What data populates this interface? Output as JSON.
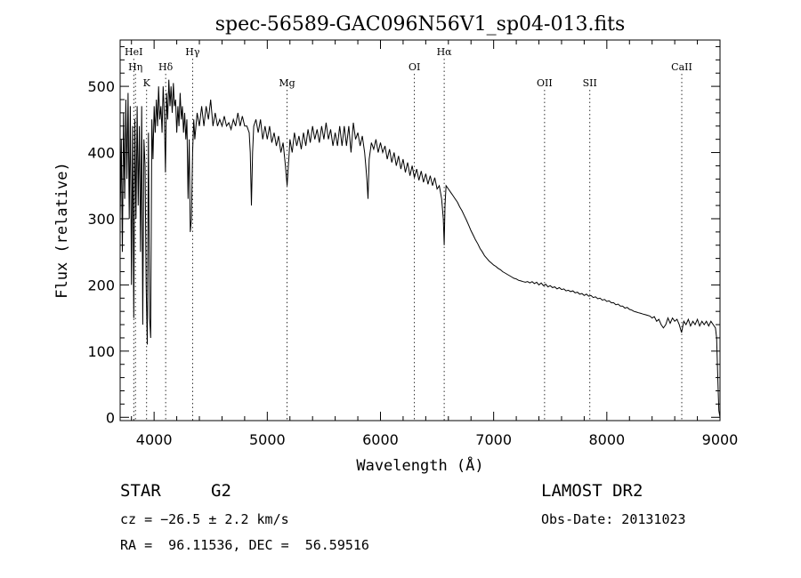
{
  "chart_data": {
    "type": "line",
    "title": "spec-56589-GAC096N56V1_sp04-013.fits",
    "xlabel": "Wavelength (Å)",
    "ylabel": "Flux (relative)",
    "xlim": [
      3700,
      9000
    ],
    "ylim": [
      -5,
      570
    ],
    "xticks": [
      4000,
      5000,
      6000,
      7000,
      8000,
      9000
    ],
    "yticks": [
      0,
      100,
      200,
      300,
      400,
      500
    ],
    "grid": false,
    "line_markers": [
      {
        "label": "HeI",
        "x": 3820,
        "row": 1
      },
      {
        "label": "Hη",
        "x": 3835,
        "row": 2
      },
      {
        "label": "K",
        "x": 3934,
        "row": 3
      },
      {
        "label": "Hδ",
        "x": 4102,
        "row": 2
      },
      {
        "label": "Hγ",
        "x": 4340,
        "row": 1
      },
      {
        "label": "Mg",
        "x": 5175,
        "row": 3
      },
      {
        "label": "OI",
        "x": 6300,
        "row": 2
      },
      {
        "label": "Hα",
        "x": 6563,
        "row": 1
      },
      {
        "label": "OII",
        "x": 7450,
        "row": 3
      },
      {
        "label": "SII",
        "x": 7850,
        "row": 3
      },
      {
        "label": "CaII",
        "x": 8662,
        "row": 2
      }
    ],
    "series": [
      {
        "values": [
          [
            3700,
            300
          ],
          [
            3710,
            420
          ],
          [
            3720,
            250
          ],
          [
            3730,
            460
          ],
          [
            3740,
            330
          ],
          [
            3750,
            480
          ],
          [
            3760,
            360
          ],
          [
            3770,
            490
          ],
          [
            3780,
            300
          ],
          [
            3790,
            470
          ],
          [
            3800,
            200
          ],
          [
            3810,
            440
          ],
          [
            3820,
            150
          ],
          [
            3830,
            450
          ],
          [
            3840,
            300
          ],
          [
            3850,
            470
          ],
          [
            3860,
            320
          ],
          [
            3870,
            440
          ],
          [
            3880,
            250
          ],
          [
            3890,
            470
          ],
          [
            3900,
            140
          ],
          [
            3910,
            420
          ],
          [
            3920,
            380
          ],
          [
            3930,
            200
          ],
          [
            3940,
            110
          ],
          [
            3950,
            430
          ],
          [
            3960,
            150
          ],
          [
            3970,
            120
          ],
          [
            3980,
            450
          ],
          [
            3990,
            390
          ],
          [
            4000,
            470
          ],
          [
            4010,
            430
          ],
          [
            4020,
            480
          ],
          [
            4030,
            440
          ],
          [
            4040,
            500
          ],
          [
            4050,
            450
          ],
          [
            4060,
            470
          ],
          [
            4070,
            430
          ],
          [
            4080,
            500
          ],
          [
            4090,
            460
          ],
          [
            4100,
            370
          ],
          [
            4110,
            490
          ],
          [
            4120,
            450
          ],
          [
            4130,
            510
          ],
          [
            4140,
            470
          ],
          [
            4150,
            500
          ],
          [
            4160,
            460
          ],
          [
            4170,
            505
          ],
          [
            4180,
            470
          ],
          [
            4190,
            480
          ],
          [
            4200,
            430
          ],
          [
            4210,
            470
          ],
          [
            4220,
            440
          ],
          [
            4230,
            490
          ],
          [
            4240,
            450
          ],
          [
            4250,
            470
          ],
          [
            4260,
            430
          ],
          [
            4270,
            460
          ],
          [
            4280,
            420
          ],
          [
            4290,
            450
          ],
          [
            4300,
            330
          ],
          [
            4310,
            420
          ],
          [
            4320,
            280
          ],
          [
            4330,
            300
          ],
          [
            4340,
            400
          ],
          [
            4350,
            450
          ],
          [
            4360,
            420
          ],
          [
            4380,
            460
          ],
          [
            4400,
            440
          ],
          [
            4420,
            470
          ],
          [
            4440,
            440
          ],
          [
            4460,
            470
          ],
          [
            4480,
            450
          ],
          [
            4500,
            480
          ],
          [
            4520,
            440
          ],
          [
            4540,
            460
          ],
          [
            4560,
            440
          ],
          [
            4580,
            450
          ],
          [
            4600,
            440
          ],
          [
            4620,
            455
          ],
          [
            4640,
            440
          ],
          [
            4660,
            445
          ],
          [
            4680,
            435
          ],
          [
            4700,
            450
          ],
          [
            4720,
            440
          ],
          [
            4740,
            460
          ],
          [
            4760,
            440
          ],
          [
            4780,
            455
          ],
          [
            4800,
            440
          ],
          [
            4820,
            440
          ],
          [
            4840,
            430
          ],
          [
            4850,
            400
          ],
          [
            4860,
            320
          ],
          [
            4870,
            400
          ],
          [
            4880,
            440
          ],
          [
            4900,
            450
          ],
          [
            4920,
            430
          ],
          [
            4940,
            450
          ],
          [
            4960,
            420
          ],
          [
            4980,
            440
          ],
          [
            5000,
            420
          ],
          [
            5020,
            440
          ],
          [
            5040,
            415
          ],
          [
            5060,
            430
          ],
          [
            5080,
            410
          ],
          [
            5100,
            425
          ],
          [
            5120,
            400
          ],
          [
            5140,
            415
          ],
          [
            5160,
            380
          ],
          [
            5175,
            350
          ],
          [
            5190,
            390
          ],
          [
            5200,
            420
          ],
          [
            5220,
            400
          ],
          [
            5240,
            430
          ],
          [
            5260,
            410
          ],
          [
            5280,
            425
          ],
          [
            5300,
            405
          ],
          [
            5320,
            430
          ],
          [
            5340,
            410
          ],
          [
            5360,
            435
          ],
          [
            5380,
            415
          ],
          [
            5400,
            440
          ],
          [
            5420,
            420
          ],
          [
            5440,
            435
          ],
          [
            5460,
            415
          ],
          [
            5480,
            440
          ],
          [
            5500,
            420
          ],
          [
            5520,
            445
          ],
          [
            5540,
            420
          ],
          [
            5560,
            435
          ],
          [
            5580,
            410
          ],
          [
            5600,
            430
          ],
          [
            5620,
            410
          ],
          [
            5640,
            440
          ],
          [
            5660,
            410
          ],
          [
            5680,
            440
          ],
          [
            5700,
            410
          ],
          [
            5720,
            440
          ],
          [
            5740,
            400
          ],
          [
            5760,
            445
          ],
          [
            5780,
            420
          ],
          [
            5800,
            430
          ],
          [
            5820,
            410
          ],
          [
            5840,
            425
          ],
          [
            5860,
            400
          ],
          [
            5870,
            380
          ],
          [
            5880,
            360
          ],
          [
            5890,
            330
          ],
          [
            5900,
            390
          ],
          [
            5920,
            415
          ],
          [
            5940,
            405
          ],
          [
            5960,
            420
          ],
          [
            5980,
            400
          ],
          [
            6000,
            415
          ],
          [
            6020,
            400
          ],
          [
            6040,
            410
          ],
          [
            6060,
            390
          ],
          [
            6080,
            405
          ],
          [
            6100,
            385
          ],
          [
            6120,
            400
          ],
          [
            6140,
            380
          ],
          [
            6160,
            395
          ],
          [
            6180,
            375
          ],
          [
            6200,
            390
          ],
          [
            6220,
            370
          ],
          [
            6240,
            385
          ],
          [
            6260,
            365
          ],
          [
            6280,
            380
          ],
          [
            6300,
            362
          ],
          [
            6320,
            375
          ],
          [
            6340,
            358
          ],
          [
            6360,
            372
          ],
          [
            6380,
            355
          ],
          [
            6400,
            368
          ],
          [
            6420,
            352
          ],
          [
            6440,
            365
          ],
          [
            6460,
            350
          ],
          [
            6480,
            362
          ],
          [
            6500,
            345
          ],
          [
            6520,
            350
          ],
          [
            6540,
            330
          ],
          [
            6555,
            300
          ],
          [
            6563,
            260
          ],
          [
            6570,
            320
          ],
          [
            6580,
            350
          ],
          [
            6600,
            345
          ],
          [
            6620,
            340
          ],
          [
            6640,
            335
          ],
          [
            6660,
            330
          ],
          [
            6680,
            325
          ],
          [
            6700,
            318
          ],
          [
            6720,
            312
          ],
          [
            6740,
            305
          ],
          [
            6760,
            298
          ],
          [
            6780,
            290
          ],
          [
            6800,
            282
          ],
          [
            6820,
            275
          ],
          [
            6840,
            268
          ],
          [
            6860,
            262
          ],
          [
            6880,
            255
          ],
          [
            6900,
            250
          ],
          [
            6920,
            244
          ],
          [
            6940,
            240
          ],
          [
            6960,
            236
          ],
          [
            6980,
            233
          ],
          [
            7000,
            230
          ],
          [
            7020,
            228
          ],
          [
            7040,
            225
          ],
          [
            7060,
            223
          ],
          [
            7080,
            220
          ],
          [
            7100,
            218
          ],
          [
            7120,
            216
          ],
          [
            7140,
            214
          ],
          [
            7160,
            212
          ],
          [
            7180,
            210
          ],
          [
            7200,
            209
          ],
          [
            7220,
            207
          ],
          [
            7240,
            206
          ],
          [
            7260,
            205
          ],
          [
            7280,
            204
          ],
          [
            7300,
            205
          ],
          [
            7320,
            203
          ],
          [
            7340,
            205
          ],
          [
            7360,
            202
          ],
          [
            7380,
            204
          ],
          [
            7400,
            200
          ],
          [
            7420,
            203
          ],
          [
            7440,
            199
          ],
          [
            7460,
            201
          ],
          [
            7480,
            197
          ],
          [
            7500,
            199
          ],
          [
            7520,
            196
          ],
          [
            7540,
            197
          ],
          [
            7560,
            194
          ],
          [
            7580,
            196
          ],
          [
            7600,
            193
          ],
          [
            7620,
            194
          ],
          [
            7640,
            191
          ],
          [
            7660,
            192
          ],
          [
            7680,
            190
          ],
          [
            7700,
            191
          ],
          [
            7720,
            188
          ],
          [
            7740,
            189
          ],
          [
            7760,
            186
          ],
          [
            7780,
            187
          ],
          [
            7800,
            184
          ],
          [
            7820,
            186
          ],
          [
            7840,
            183
          ],
          [
            7860,
            184
          ],
          [
            7880,
            181
          ],
          [
            7900,
            182
          ],
          [
            7920,
            179
          ],
          [
            7940,
            180
          ],
          [
            7960,
            177
          ],
          [
            7980,
            178
          ],
          [
            8000,
            175
          ],
          [
            8020,
            176
          ],
          [
            8040,
            173
          ],
          [
            8060,
            173
          ],
          [
            8080,
            170
          ],
          [
            8100,
            171
          ],
          [
            8120,
            168
          ],
          [
            8140,
            168
          ],
          [
            8160,
            165
          ],
          [
            8180,
            166
          ],
          [
            8200,
            163
          ],
          [
            8220,
            162
          ],
          [
            8240,
            160
          ],
          [
            8260,
            159
          ],
          [
            8280,
            158
          ],
          [
            8300,
            157
          ],
          [
            8320,
            156
          ],
          [
            8340,
            155
          ],
          [
            8360,
            154
          ],
          [
            8380,
            153
          ],
          [
            8400,
            150
          ],
          [
            8420,
            152
          ],
          [
            8440,
            145
          ],
          [
            8460,
            148
          ],
          [
            8480,
            140
          ],
          [
            8500,
            135
          ],
          [
            8520,
            140
          ],
          [
            8540,
            150
          ],
          [
            8560,
            142
          ],
          [
            8580,
            150
          ],
          [
            8600,
            145
          ],
          [
            8620,
            148
          ],
          [
            8640,
            140
          ],
          [
            8660,
            128
          ],
          [
            8680,
            145
          ],
          [
            8700,
            140
          ],
          [
            8720,
            148
          ],
          [
            8740,
            138
          ],
          [
            8760,
            145
          ],
          [
            8780,
            140
          ],
          [
            8800,
            148
          ],
          [
            8820,
            138
          ],
          [
            8840,
            145
          ],
          [
            8860,
            140
          ],
          [
            8880,
            145
          ],
          [
            8900,
            138
          ],
          [
            8920,
            145
          ],
          [
            8940,
            140
          ],
          [
            8960,
            135
          ],
          [
            8970,
            120
          ],
          [
            8980,
            60
          ],
          [
            8990,
            10
          ],
          [
            9000,
            0
          ]
        ]
      }
    ]
  },
  "info": {
    "object_type": "STAR",
    "subclass": "G2",
    "survey": "LAMOST DR2",
    "cz": "cz = −26.5 ± 2.2 km/s",
    "obs_date": "Obs-Date: 20131023",
    "coords": "RA =  96.11536, DEC =  56.59516"
  }
}
